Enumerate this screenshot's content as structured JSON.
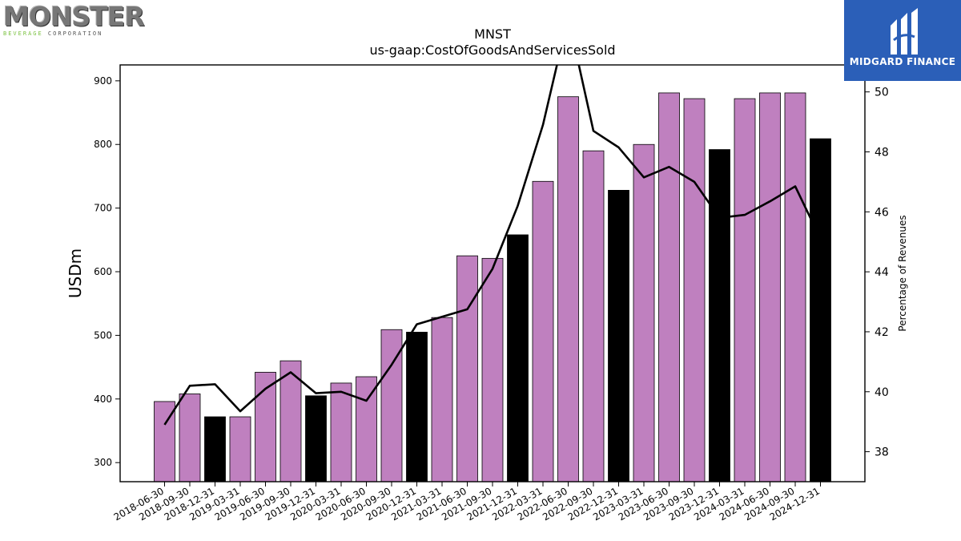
{
  "logos": {
    "left": {
      "word": "MONSTER",
      "sub_green": "BEVERAGE",
      "sub_rest": " CORPORATION"
    },
    "right": {
      "name": "MIDGARD FINANCE"
    }
  },
  "chart_data": {
    "type": "bar",
    "title": "MNST",
    "subtitle": "us-gaap:CostOfGoodsAndServicesSold",
    "ylabel": "USDm",
    "y2label": "Percentage of Revenues",
    "ylim": [
      270,
      925
    ],
    "y2lim": [
      37.0,
      50.9
    ],
    "yticks": [
      300,
      400,
      500,
      600,
      700,
      800,
      900
    ],
    "y2ticks": [
      38,
      40,
      42,
      44,
      46,
      48,
      50
    ],
    "categories": [
      "2018-06-30",
      "2018-09-30",
      "2018-12-31",
      "2019-03-31",
      "2019-06-30",
      "2019-09-30",
      "2019-12-31",
      "2020-03-31",
      "2020-06-30",
      "2020-09-30",
      "2020-12-31",
      "2021-03-31",
      "2021-06-30",
      "2021-09-30",
      "2021-12-31",
      "2022-03-31",
      "2022-06-30",
      "2022-09-30",
      "2022-12-31",
      "2023-03-31",
      "2023-06-30",
      "2023-09-30",
      "2023-12-31",
      "2024-03-31",
      "2024-06-30",
      "2024-09-30",
      "2024-12-31"
    ],
    "values": [
      396,
      408,
      372,
      372,
      442,
      460,
      405,
      425,
      435,
      509,
      505,
      528,
      625,
      621,
      658,
      742,
      875,
      790,
      728,
      800,
      881,
      872,
      792,
      872,
      881,
      881,
      809
    ],
    "bar_colors": [
      "#bf80bf",
      "#bf80bf",
      "#000000",
      "#bf80bf",
      "#bf80bf",
      "#bf80bf",
      "#000000",
      "#bf80bf",
      "#bf80bf",
      "#bf80bf",
      "#000000",
      "#bf80bf",
      "#bf80bf",
      "#bf80bf",
      "#000000",
      "#bf80bf",
      "#bf80bf",
      "#bf80bf",
      "#000000",
      "#bf80bf",
      "#bf80bf",
      "#bf80bf",
      "#000000",
      "#bf80bf",
      "#bf80bf",
      "#bf80bf",
      "#000000"
    ],
    "line_values": [
      38.9,
      40.2,
      40.25,
      39.35,
      40.1,
      40.65,
      39.95,
      40.0,
      39.7,
      40.9,
      42.25,
      42.5,
      42.75,
      44.1,
      46.2,
      48.9,
      52.5,
      48.7,
      48.15,
      47.15,
      47.5,
      47.0,
      45.8,
      45.9,
      46.35,
      46.85,
      45.1
    ],
    "colors": {
      "quarter": "#bf80bf",
      "year_end": "#000000",
      "line": "#000000"
    },
    "grid": false
  }
}
